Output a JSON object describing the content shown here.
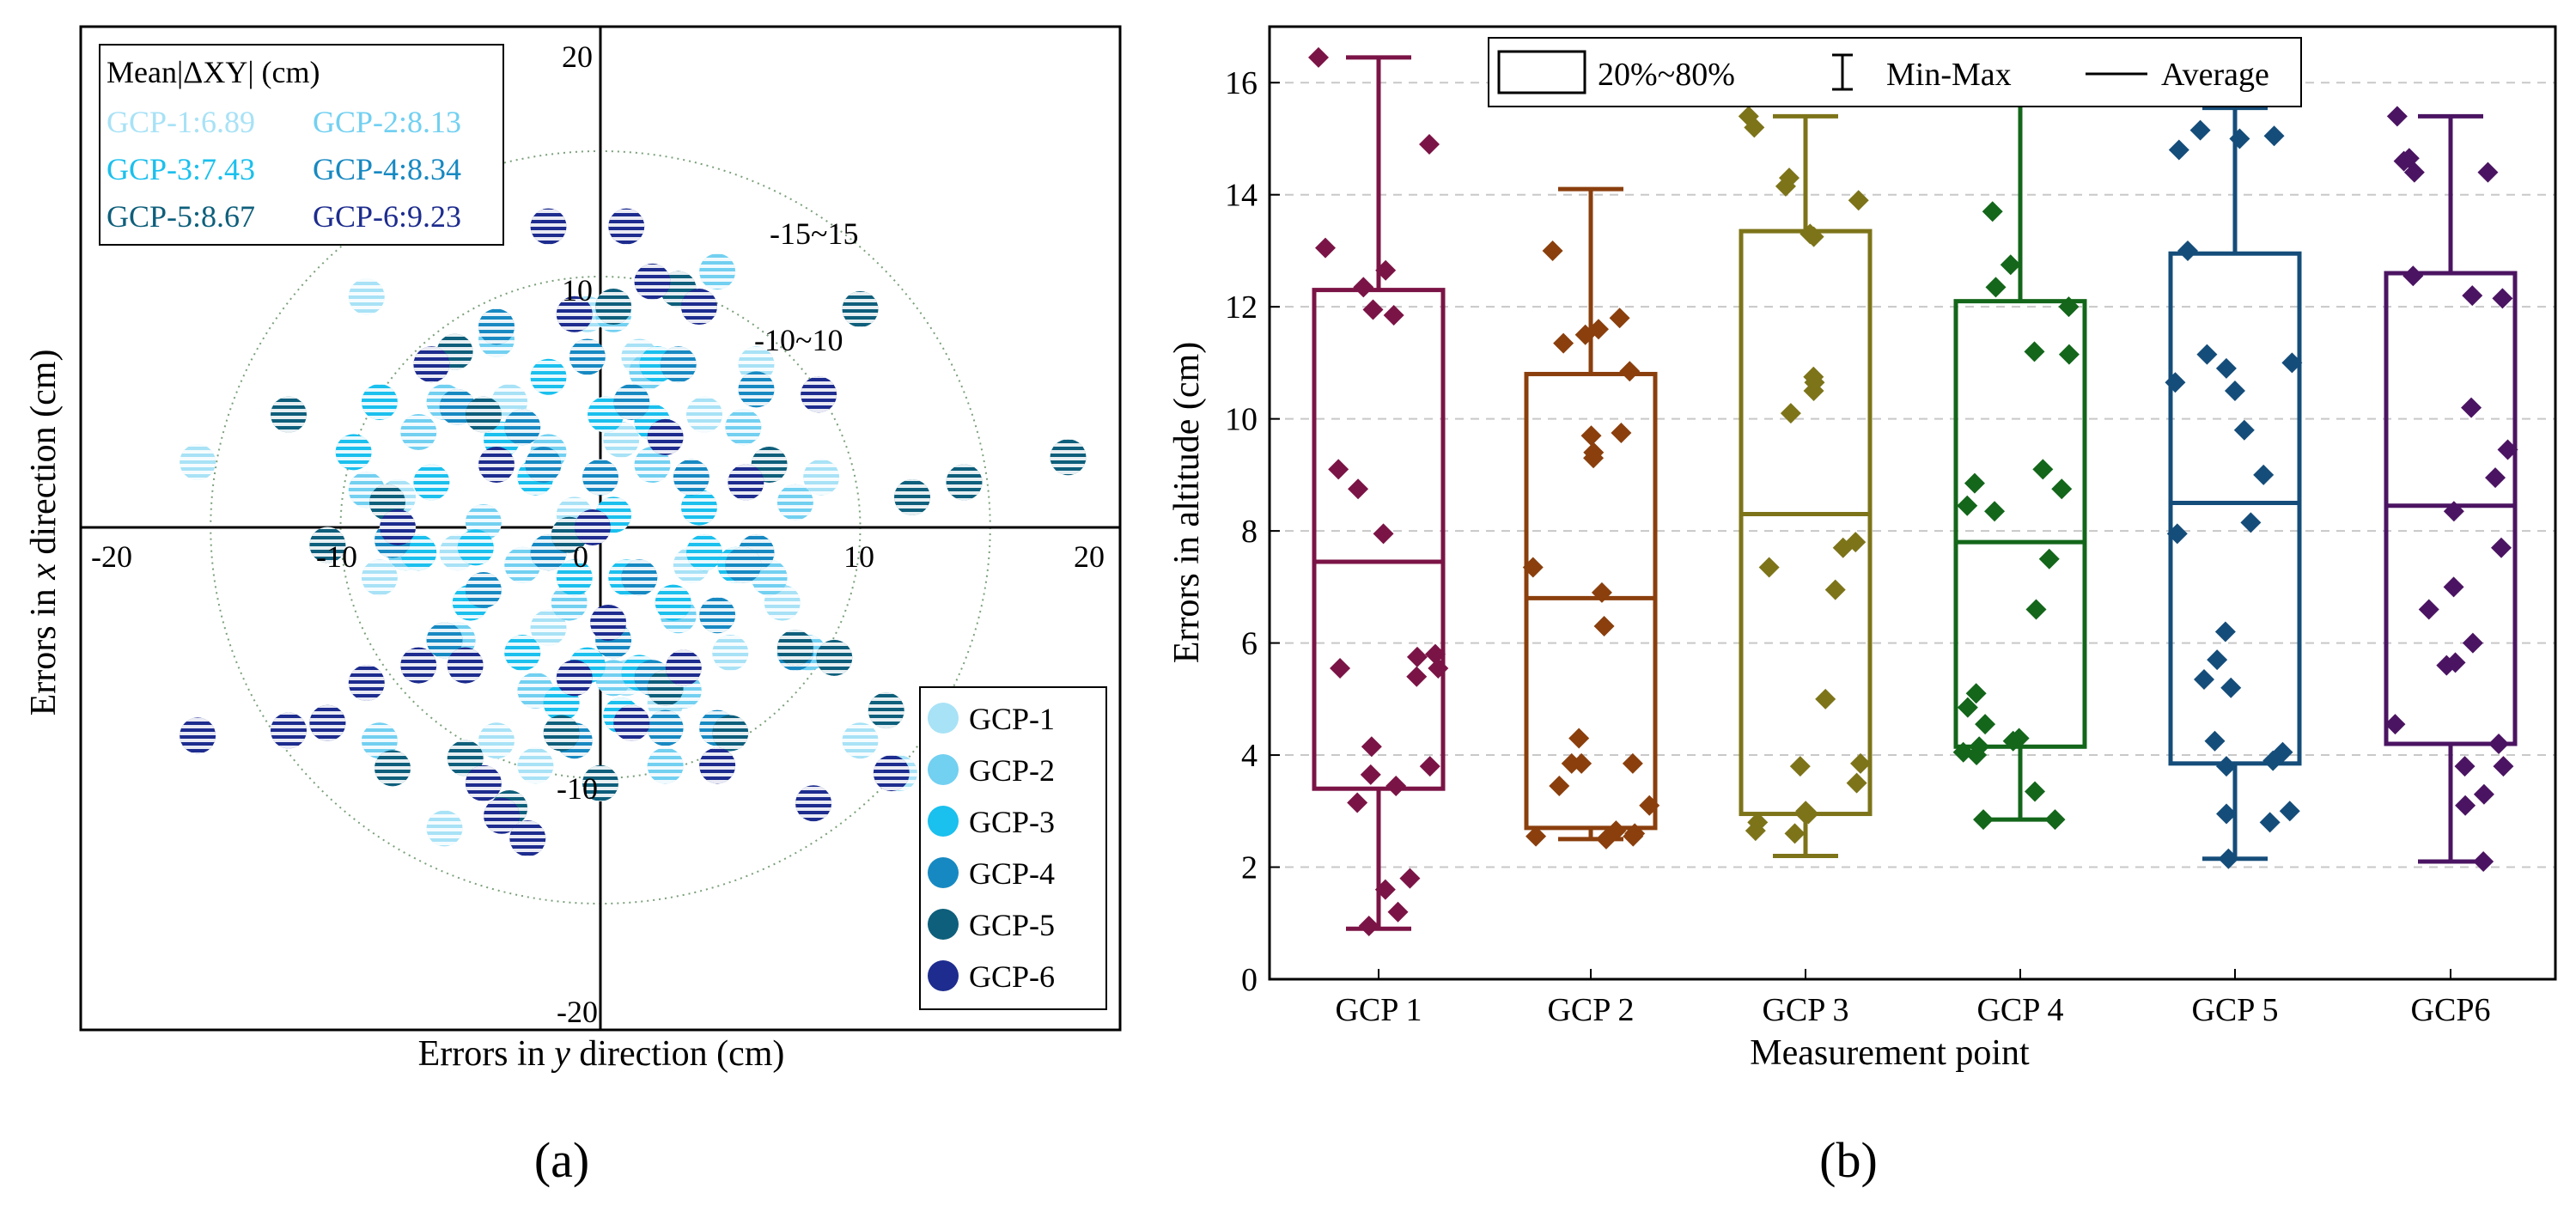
{
  "panel_labels": [
    "(a)",
    "(b)"
  ],
  "colors": {
    "GCP-1": "#a8e2f6",
    "GCP-2": "#72d0f1",
    "GCP-3": "#1ac0ee",
    "GCP-4": "#1789c2",
    "GCP-5": "#0e5f7b",
    "GCP-6": "#1d2c8e",
    "box": [
      "#7b1446",
      "#8a3f0d",
      "#7d741a",
      "#13661a",
      "#154d7a",
      "#4b1462"
    ]
  },
  "chart_data": [
    {
      "type": "scatter",
      "xlabel_pre": "Errors in ",
      "xlabel_var": "y",
      "xlabel_post": " direction (cm)",
      "ylabel_pre": "Errors in ",
      "ylabel_var": "x",
      "ylabel_post": " direction (cm)",
      "xlim": [
        -20,
        20
      ],
      "ylim": [
        -20,
        20
      ],
      "x_ticks": [
        "-20",
        "-10",
        "0",
        "10",
        "20"
      ],
      "y_ticks": [
        "20",
        "10",
        "-10",
        "-20"
      ],
      "circle_labels": [
        "-10~10",
        "-15~15"
      ],
      "circle_radii": [
        10,
        15
      ],
      "mean_title": "Mean|ΔXY| (cm)",
      "mean_entries": [
        "GCP-1:6.89",
        "GCP-2:8.13",
        "GCP-3:7.43",
        "GCP-4:8.34",
        "GCP-5:8.67",
        "GCP-6:9.23"
      ],
      "legend": [
        "GCP-1",
        "GCP-2",
        "GCP-3",
        "GCP-4",
        "GCP-5",
        "GCP-6"
      ],
      "series": [
        {
          "name": "GCP-1",
          "points": [
            [
              -15.5,
              2.6
            ],
            [
              -9,
              9.2
            ],
            [
              -7.8,
              1.2
            ],
            [
              -4,
              -8.5
            ],
            [
              1.5,
              6.8
            ],
            [
              4,
              4.5
            ],
            [
              -6,
              -12
            ],
            [
              -2,
              -4
            ],
            [
              10,
              -8.5
            ],
            [
              11.5,
              -9.8
            ],
            [
              2.5,
              -7
            ],
            [
              -0.5,
              8.5
            ],
            [
              5,
              -5
            ],
            [
              -8.5,
              -2
            ],
            [
              0.8,
              3.5
            ],
            [
              3.5,
              -1.5
            ],
            [
              -3.5,
              5
            ],
            [
              8.5,
              2
            ],
            [
              -5.5,
              -1
            ],
            [
              1,
              -6
            ],
            [
              -1,
              0.5
            ],
            [
              7,
              -3
            ],
            [
              -2.5,
              -9.5
            ],
            [
              6,
              6.5
            ]
          ]
        },
        {
          "name": "GCP-2",
          "points": [
            [
              -9,
              1.5
            ],
            [
              -7.5,
              -1
            ],
            [
              -6,
              5
            ],
            [
              -4,
              7.5
            ],
            [
              -2,
              3
            ],
            [
              0.5,
              8.5
            ],
            [
              1.8,
              6.2
            ],
            [
              3,
              -3.5
            ],
            [
              4.5,
              10.2
            ],
            [
              6.5,
              -2
            ],
            [
              -8.5,
              -8.5
            ],
            [
              -5.5,
              -4.5
            ],
            [
              -1.2,
              -3
            ],
            [
              2.5,
              -9.5
            ],
            [
              -3,
              -1.5
            ],
            [
              0.5,
              -6
            ],
            [
              8,
              -5
            ],
            [
              5.5,
              4
            ],
            [
              -7,
              3.8
            ],
            [
              2,
              2.5
            ],
            [
              -2.5,
              -6.5
            ],
            [
              7.5,
              1
            ],
            [
              3.2,
              -6.5
            ],
            [
              -4.5,
              0.2
            ]
          ]
        },
        {
          "name": "GCP-3",
          "points": [
            [
              -9.5,
              3
            ],
            [
              -7,
              -1
            ],
            [
              -5,
              -3
            ],
            [
              -3,
              -5
            ],
            [
              -1,
              -2
            ],
            [
              0.5,
              0.5
            ],
            [
              2,
              4.2
            ],
            [
              4,
              -1
            ],
            [
              -2,
              6
            ],
            [
              0.8,
              -7.5
            ],
            [
              -6.5,
              1.8
            ],
            [
              -0.5,
              -5.5
            ],
            [
              2.8,
              -3
            ],
            [
              -3.8,
              3.5
            ],
            [
              1.5,
              -5.8
            ],
            [
              -2.5,
              2
            ],
            [
              3.8,
              0.8
            ],
            [
              -4.8,
              -0.8
            ],
            [
              0.2,
              4.5
            ],
            [
              1,
              -2
            ],
            [
              -1.5,
              -7
            ],
            [
              2.2,
              6.5
            ],
            [
              -8.5,
              5
            ],
            [
              5.2,
              -1.5
            ]
          ]
        },
        {
          "name": "GCP-4",
          "points": [
            [
              -6,
              -4.5
            ],
            [
              -3,
              4
            ],
            [
              0,
              2
            ],
            [
              2,
              -6
            ],
            [
              4.5,
              -8
            ],
            [
              6,
              5.5
            ],
            [
              -8,
              -0.5
            ],
            [
              -4,
              8
            ],
            [
              1.5,
              -2
            ],
            [
              3,
              6.5
            ],
            [
              -1,
              -8.5
            ],
            [
              6,
              -1
            ],
            [
              5.5,
              -1.5
            ],
            [
              -2,
              -1
            ],
            [
              3.5,
              2
            ],
            [
              0.5,
              -4.5
            ],
            [
              -5.5,
              4.8
            ],
            [
              -0.5,
              6.8
            ],
            [
              1.2,
              5
            ],
            [
              -2.2,
              2.5
            ],
            [
              4.5,
              -3.5
            ],
            [
              -4.5,
              -2.5
            ],
            [
              2.5,
              -8
            ],
            [
              7.5,
              -5
            ]
          ]
        },
        {
          "name": "GCP-5",
          "points": [
            [
              -12,
              4.5
            ],
            [
              -10.5,
              -0.7
            ],
            [
              -8,
              -9.6
            ],
            [
              -5.2,
              -9.2
            ],
            [
              -3.5,
              -11.2
            ],
            [
              -1.5,
              -8.2
            ],
            [
              0,
              -10.2
            ],
            [
              2.5,
              -6.4
            ],
            [
              5,
              -8.2
            ],
            [
              7.5,
              -4.8
            ],
            [
              9,
              -5.2
            ],
            [
              11,
              -7.3
            ],
            [
              12,
              1.2
            ],
            [
              14,
              1.8
            ],
            [
              18,
              2.8
            ],
            [
              10,
              8.7
            ],
            [
              6.5,
              2.5
            ],
            [
              0.5,
              8.8
            ],
            [
              3,
              9.5
            ],
            [
              -4.5,
              4.5
            ],
            [
              -8.2,
              1
            ],
            [
              -10.5,
              -7.8
            ],
            [
              -1.2,
              -0.3
            ],
            [
              -5.6,
              7
            ]
          ]
        },
        {
          "name": "GCP-6",
          "points": [
            [
              -15.5,
              -8.3
            ],
            [
              -12,
              -8.1
            ],
            [
              -10.5,
              -7.8
            ],
            [
              -7,
              -5.5
            ],
            [
              -5.2,
              -5.5
            ],
            [
              -4.5,
              -10.2
            ],
            [
              -3.8,
              -11.5
            ],
            [
              -2.8,
              -12.4
            ],
            [
              -1,
              -6
            ],
            [
              0.3,
              -3.8
            ],
            [
              1.2,
              -7.8
            ],
            [
              3.2,
              -5.6
            ],
            [
              8.4,
              5.3
            ],
            [
              11.2,
              -9.8
            ],
            [
              -2,
              12
            ],
            [
              1,
              12
            ],
            [
              2,
              9.8
            ],
            [
              -1,
              8.5
            ],
            [
              3.8,
              8.8
            ],
            [
              5.6,
              1.8
            ],
            [
              -4,
              2.5
            ],
            [
              -6.5,
              6.5
            ],
            [
              -0.3,
              0
            ],
            [
              2.5,
              3.6
            ],
            [
              -7.8,
              0
            ],
            [
              -9,
              -6.2
            ],
            [
              4.5,
              -9.5
            ],
            [
              8.2,
              -11
            ]
          ]
        }
      ]
    },
    {
      "type": "box",
      "ylabel": "Errors in altitude (cm)",
      "xlabel": "Measurement point",
      "ylim": [
        0,
        17
      ],
      "y_ticks": [
        "0",
        "2",
        "4",
        "6",
        "8",
        "10",
        "12",
        "14",
        "16"
      ],
      "legend": [
        "20%~80%",
        "Min-Max",
        "Average"
      ],
      "categories": [
        "GCP 1",
        "GCP 2",
        "GCP 3",
        "GCP 4",
        "GCP 5",
        "GCP6"
      ],
      "boxes": [
        {
          "min": 0.9,
          "q20": 3.4,
          "avg": 7.45,
          "q80": 12.3,
          "max": 16.45,
          "points": [
            16.45,
            14.9,
            13.05,
            12.65,
            12.35,
            11.95,
            11.85,
            9.1,
            8.75,
            7.95,
            5.8,
            5.75,
            5.55,
            5.55,
            5.4,
            4.15,
            3.8,
            3.65,
            3.45,
            3.15,
            1.8,
            1.6,
            1.2,
            0.95
          ]
        },
        {
          "min": 2.5,
          "q20": 2.7,
          "avg": 6.8,
          "q80": 10.8,
          "max": 14.1,
          "points": [
            13.0,
            11.8,
            11.6,
            11.5,
            11.35,
            10.85,
            9.75,
            9.7,
            9.4,
            9.3,
            7.35,
            6.9,
            6.3,
            4.3,
            3.85,
            3.85,
            3.85,
            3.45,
            3.1,
            2.65,
            2.6,
            2.55,
            2.55,
            2.5
          ]
        },
        {
          "min": 2.2,
          "q20": 2.95,
          "avg": 8.3,
          "q80": 13.35,
          "max": 15.4,
          "points": [
            15.4,
            15.2,
            14.3,
            14.15,
            13.9,
            13.3,
            13.25,
            10.75,
            10.65,
            10.5,
            10.1,
            7.8,
            7.7,
            7.35,
            6.95,
            5.0,
            3.85,
            3.8,
            3.5,
            3.0,
            2.95,
            2.95,
            2.8,
            2.65,
            2.6
          ]
        },
        {
          "min": 2.85,
          "q20": 4.15,
          "avg": 7.8,
          "q80": 12.1,
          "max": 15.75,
          "points": [
            13.7,
            12.75,
            12.35,
            12.0,
            11.2,
            11.15,
            9.1,
            8.85,
            8.75,
            8.45,
            8.35,
            7.5,
            6.6,
            5.1,
            4.85,
            4.55,
            4.3,
            4.25,
            4.15,
            4.05,
            4.0,
            3.35,
            2.85,
            2.85
          ]
        },
        {
          "min": 2.15,
          "q20": 3.85,
          "avg": 8.5,
          "q80": 12.95,
          "max": 15.55,
          "points": [
            15.15,
            15.05,
            15.0,
            14.8,
            13.0,
            11.15,
            11.0,
            10.9,
            10.65,
            10.5,
            9.8,
            9.0,
            8.15,
            7.95,
            6.2,
            5.7,
            5.35,
            5.2,
            4.25,
            4.05,
            3.9,
            3.8,
            3.0,
            2.95,
            2.8,
            2.15
          ]
        },
        {
          "min": 2.1,
          "q20": 4.2,
          "avg": 8.45,
          "q80": 12.6,
          "max": 15.4,
          "points": [
            15.4,
            14.65,
            14.6,
            14.4,
            14.4,
            12.55,
            12.2,
            12.15,
            10.2,
            9.45,
            8.95,
            8.35,
            7.7,
            7.0,
            6.6,
            6.0,
            5.65,
            5.6,
            4.55,
            4.2,
            3.8,
            3.8,
            3.3,
            3.1,
            2.1
          ]
        }
      ]
    }
  ]
}
